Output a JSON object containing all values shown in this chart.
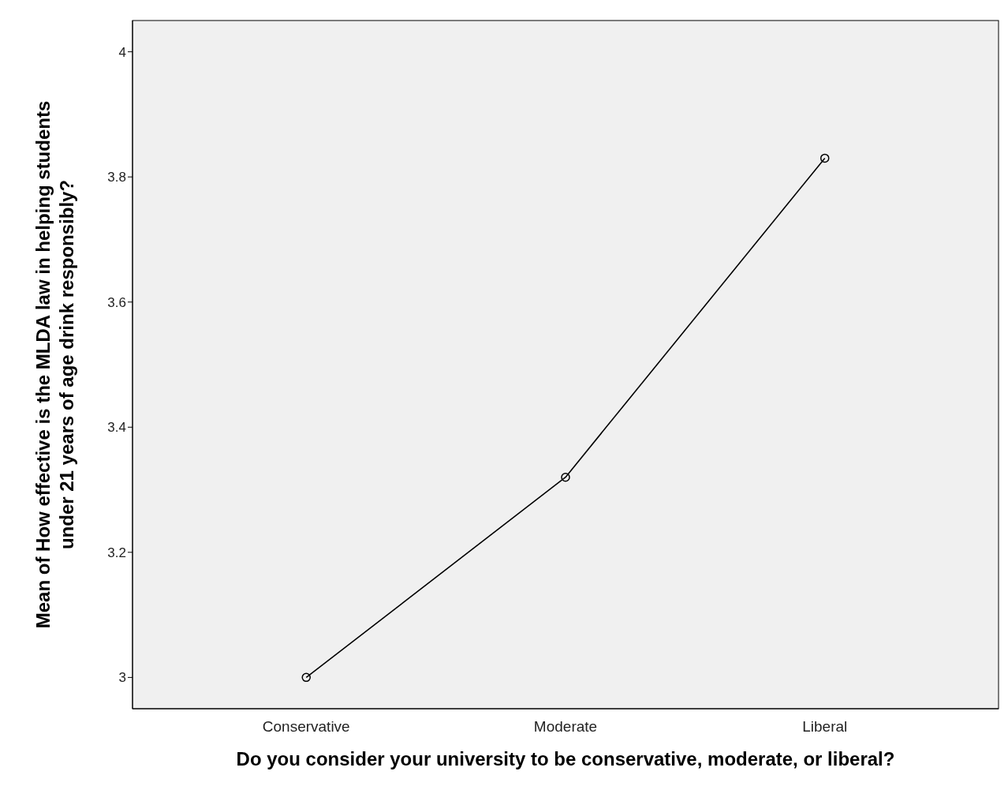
{
  "chart_data": {
    "type": "line",
    "xlabel": "Do you consider your university to be conservative, moderate, or liberal?",
    "ylabel": "Mean of How effective is the MLDA law in helping students under 21 years of age drink responsibly?",
    "categories": [
      "Conservative",
      "Moderate",
      "Liberal"
    ],
    "series": [
      {
        "color": "#000000",
        "values": [
          3.0,
          3.32,
          3.83
        ]
      }
    ],
    "ylim": [
      2.95,
      4.05
    ],
    "yticks": [
      3,
      3.2,
      3.4,
      3.6,
      3.8,
      4
    ],
    "grid": false,
    "legend": false,
    "marker": "circle",
    "line_style": "solid"
  }
}
